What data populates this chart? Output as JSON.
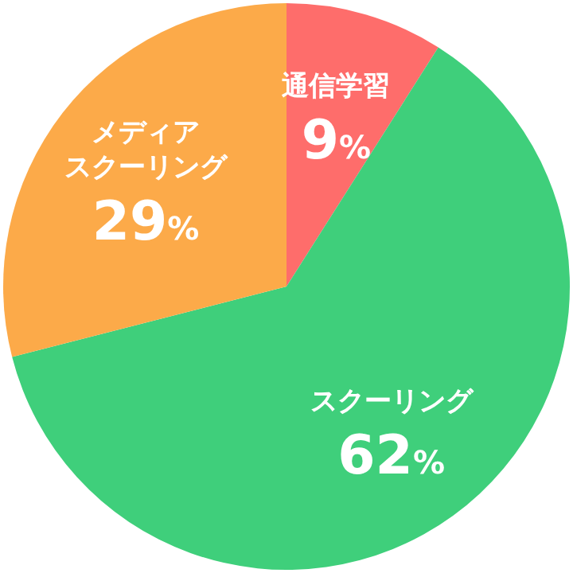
{
  "chart_data": {
    "type": "pie",
    "categories": [
      "通信学習",
      "スクーリング",
      "メディアスクーリング"
    ],
    "values": [
      9,
      62,
      29
    ],
    "colors": [
      "#fe6d6b",
      "#3fcf7b",
      "#fcaa49"
    ],
    "value_labels": [
      "9%",
      "62%",
      "29%"
    ]
  }
}
